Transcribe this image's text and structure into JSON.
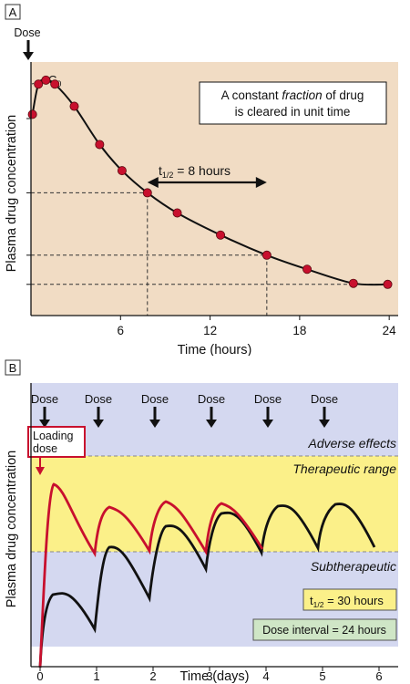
{
  "chart_data": [
    {
      "panel_label": "A",
      "type": "line",
      "title": "",
      "xlabel": "Time (hours)",
      "ylabel": "Plasma drug concentration",
      "xlim": [
        0,
        24.6
      ],
      "x_ticks": [
        6,
        12,
        18,
        24
      ],
      "grid": false,
      "dose_label": "Dose",
      "c0_label": "C0",
      "c0_base": "C",
      "c0_sub": "0",
      "note_line1": "A constant ",
      "note_italic": "fraction",
      "note_line1_end": " of drug",
      "note_line2": "is cleared in unit time",
      "halflife_base": "t",
      "halflife_sub": "1/2",
      "halflife_value": " = 8 hours",
      "colors": {
        "background": "#f1dcc4",
        "points": "#c8102e",
        "line": "#111111"
      },
      "series": [
        {
          "points": [
            {
              "x": 0.1,
              "y": 100.0
            },
            {
              "x": 0.5,
              "y": 115.0
            },
            {
              "x": 1.0,
              "y": 117.0
            },
            {
              "x": 1.6,
              "y": 115.0
            },
            {
              "x": 2.9,
              "y": 104.0
            },
            {
              "x": 4.6,
              "y": 85.0
            },
            {
              "x": 6.1,
              "y": 72.0
            },
            {
              "x": 7.8,
              "y": 61.0
            },
            {
              "x": 9.8,
              "y": 51.0
            },
            {
              "x": 12.7,
              "y": 40.0
            },
            {
              "x": 15.8,
              "y": 30.0
            },
            {
              "x": 18.5,
              "y": 23.0
            },
            {
              "x": 21.6,
              "y": 16.0
            },
            {
              "x": 23.9,
              "y": 15.5
            }
          ]
        }
      ]
    },
    {
      "panel_label": "B",
      "type": "line",
      "title": "",
      "xlabel": "Time (days)",
      "ylabel": "Plasma drug concentration",
      "xlim": [
        0,
        6.3
      ],
      "x_ticks": [
        0,
        1,
        2,
        3,
        4,
        5,
        6
      ],
      "grid": false,
      "dose_label": "Dose",
      "dose_times": [
        0,
        1,
        2,
        3,
        4,
        5
      ],
      "loading_dose_line1": "Loading",
      "loading_dose_line2": "dose",
      "zones": [
        {
          "name": "Adverse effects",
          "color": "#d4d8f0"
        },
        {
          "name": "Therapeutic range",
          "color": "#fbf089"
        },
        {
          "name": "Subtherapeutic",
          "color": "#d4d8f0"
        }
      ],
      "halflife_base": "t",
      "halflife_sub": "1/2",
      "halflife_value": " = 30 hours",
      "dose_interval": "Dose interval = 24 hours",
      "colors": {
        "loading": "#c8102e",
        "maintenance": "#111111",
        "halflife_box": "#fbf089",
        "interval_box": "#cfe6c6"
      }
    }
  ]
}
